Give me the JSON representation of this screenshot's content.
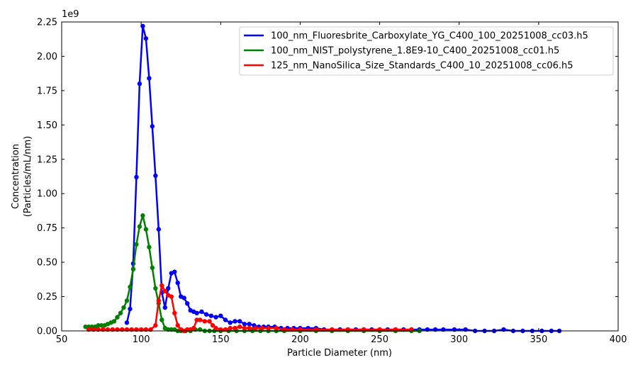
{
  "chart_data": {
    "type": "line",
    "title": "",
    "xlabel": "Particle Diameter (nm)",
    "ylabel": [
      "Concentration",
      "(Particles/mL/nm)"
    ],
    "y_offset_label": "1e9",
    "xlim": [
      50,
      400
    ],
    "ylim": [
      0,
      2.25
    ],
    "xticks": [
      50,
      100,
      150,
      200,
      250,
      300,
      350,
      400
    ],
    "xtick_labels": [
      "50",
      "100",
      "150",
      "200",
      "250",
      "300",
      "350",
      "400"
    ],
    "yticks": [
      0,
      0.25,
      0.5,
      0.75,
      1.0,
      1.25,
      1.5,
      1.75,
      2.0,
      2.25
    ],
    "ytick_labels": [
      "0.00",
      "0.25",
      "0.50",
      "0.75",
      "1.00",
      "1.25",
      "1.50",
      "1.75",
      "2.00",
      "2.25"
    ],
    "legend_position": "top-right",
    "grid": false,
    "series": [
      {
        "name": "100_nm_Fluoresbrite_Carboxylate_YG_C400_100_20251008_cc03.h5",
        "color": "#0000ff",
        "x": [
          91,
          93,
          95,
          97,
          99,
          101,
          103,
          105,
          107,
          109,
          111,
          113,
          115,
          117,
          119,
          121,
          123,
          125,
          127,
          129,
          131,
          133,
          135,
          138,
          141,
          144,
          147,
          150,
          153,
          156,
          159,
          162,
          165,
          168,
          171,
          174,
          177,
          180,
          184,
          188,
          192,
          196,
          200,
          205,
          210,
          215,
          220,
          225,
          230,
          235,
          240,
          245,
          250,
          255,
          260,
          265,
          270,
          275,
          280,
          285,
          290,
          297,
          304,
          310,
          316,
          322,
          328,
          334,
          340,
          346,
          352,
          358,
          363
        ],
        "y": [
          0.06,
          0.16,
          0.49,
          1.12,
          1.8,
          2.22,
          2.13,
          1.84,
          1.49,
          1.13,
          0.74,
          0.28,
          0.17,
          0.31,
          0.42,
          0.43,
          0.35,
          0.25,
          0.24,
          0.2,
          0.15,
          0.14,
          0.13,
          0.14,
          0.12,
          0.11,
          0.1,
          0.11,
          0.08,
          0.06,
          0.07,
          0.07,
          0.05,
          0.05,
          0.04,
          0.03,
          0.03,
          0.03,
          0.03,
          0.02,
          0.02,
          0.02,
          0.02,
          0.02,
          0.02,
          0.01,
          0.01,
          0.01,
          0.01,
          0.01,
          0.01,
          0.01,
          0.01,
          0.01,
          0.01,
          0.01,
          0.01,
          0.01,
          0.01,
          0.01,
          0.01,
          0.01,
          0.01,
          0.0,
          0.0,
          0.0,
          0.01,
          0.0,
          0.0,
          0.0,
          0.0,
          0.0,
          0.0
        ]
      },
      {
        "name": "100_nm_NIST_polystyrene_1.8E9-10_C400_20251008_cc01.h5",
        "color": "#008000",
        "x": [
          65,
          67,
          69,
          71,
          73,
          75,
          77,
          79,
          81,
          83,
          85,
          87,
          89,
          91,
          93,
          95,
          97,
          99,
          101,
          103,
          105,
          107,
          109,
          111,
          113,
          115,
          117,
          119,
          121,
          123,
          125,
          128,
          131,
          134,
          137,
          140,
          143,
          146,
          150,
          155,
          160,
          165,
          170,
          175,
          180,
          185,
          190,
          200,
          210,
          220,
          230,
          240,
          250,
          260,
          270,
          275
        ],
        "y": [
          0.03,
          0.03,
          0.03,
          0.03,
          0.04,
          0.04,
          0.04,
          0.05,
          0.06,
          0.07,
          0.1,
          0.13,
          0.17,
          0.22,
          0.32,
          0.45,
          0.63,
          0.76,
          0.84,
          0.74,
          0.61,
          0.46,
          0.31,
          0.2,
          0.08,
          0.02,
          0.01,
          0.01,
          0.01,
          0.0,
          0.0,
          0.0,
          0.0,
          0.01,
          0.01,
          0.0,
          0.0,
          0.0,
          0.0,
          0.0,
          0.0,
          0.0,
          0.0,
          0.0,
          0.0,
          0.0,
          0.0,
          0.0,
          0.0,
          0.0,
          0.0,
          0.0,
          0.0,
          0.0,
          0.0,
          0.0
        ]
      },
      {
        "name": "125_nm_NanoSilica_Size_Standards_C400_10_20251008_cc06.h5",
        "color": "#ff0000",
        "x": [
          67,
          70,
          73,
          76,
          79,
          82,
          85,
          88,
          91,
          94,
          97,
          100,
          103,
          106,
          109,
          111,
          113,
          115,
          117,
          119,
          121,
          123,
          125,
          127,
          129,
          131,
          133,
          135,
          137,
          140,
          143,
          145,
          147,
          150,
          153,
          156,
          159,
          162,
          165,
          168,
          172,
          176,
          180,
          185,
          190,
          195,
          200,
          210,
          220,
          230,
          240,
          250,
          260,
          270
        ],
        "y": [
          0.01,
          0.01,
          0.01,
          0.01,
          0.01,
          0.01,
          0.01,
          0.01,
          0.01,
          0.01,
          0.01,
          0.01,
          0.01,
          0.01,
          0.04,
          0.22,
          0.33,
          0.29,
          0.26,
          0.25,
          0.13,
          0.04,
          0.01,
          0.0,
          0.01,
          0.01,
          0.02,
          0.08,
          0.08,
          0.07,
          0.07,
          0.04,
          0.02,
          0.01,
          0.01,
          0.02,
          0.02,
          0.03,
          0.02,
          0.02,
          0.02,
          0.02,
          0.02,
          0.02,
          0.01,
          0.01,
          0.01,
          0.01,
          0.01,
          0.01,
          0.01,
          0.01,
          0.01,
          0.01
        ]
      }
    ]
  }
}
